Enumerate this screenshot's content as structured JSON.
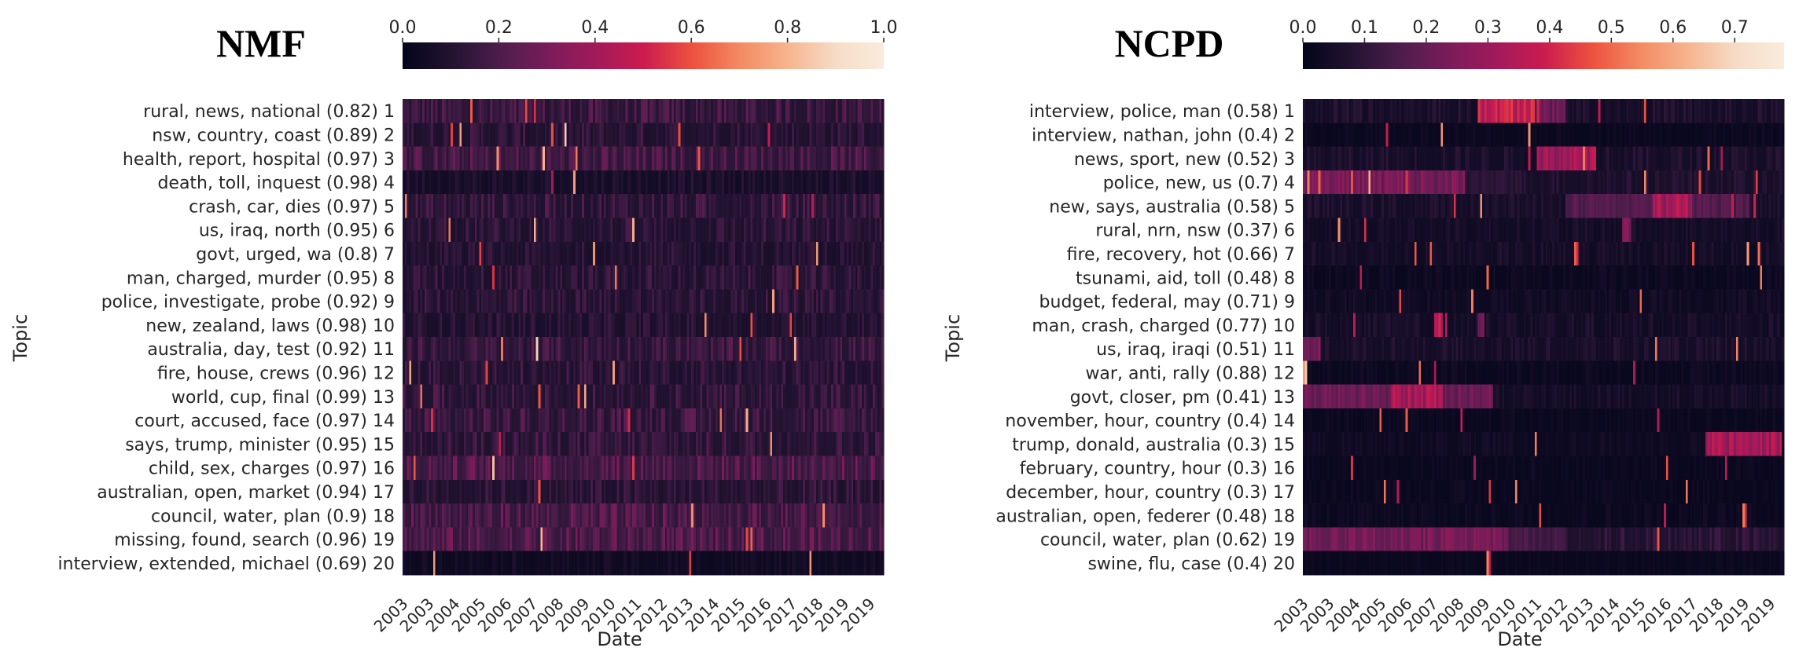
{
  "colormap": [
    "#03051a",
    "#221331",
    "#4c1d4b",
    "#781c59",
    "#a11a5b",
    "#cb1b4f",
    "#ed503e",
    "#f38a62",
    "#f6b48e",
    "#f6dcc7",
    "#faebdd"
  ],
  "chart_data": [
    {
      "type": "heatmap",
      "title": "NMF",
      "xlabel": "Date",
      "ylabel": "Topic",
      "colorbar_ticks": [
        "0.0",
        "0.2",
        "0.4",
        "0.6",
        "0.8",
        "1.0"
      ],
      "colorbar_range": [
        0,
        1.0
      ],
      "x_ticks": [
        "2003",
        "2003",
        "2004",
        "2005",
        "2006",
        "2007",
        "2008",
        "2009",
        "2010",
        "2011",
        "2012",
        "2013",
        "2014",
        "2015",
        "2016",
        "2017",
        "2018",
        "2019",
        "2019"
      ],
      "topics": [
        "rural, news, national  (0.82) 1",
        "nsw, country, coast  (0.89) 2",
        "health, report, hospital  (0.97) 3",
        "death, toll, inquest  (0.98) 4",
        "crash, car, dies  (0.97) 5",
        "us, iraq, north  (0.95) 6",
        "govt, urged, wa  (0.8) 7",
        "man, charged, murder  (0.95) 8",
        "police, investigate, probe  (0.92) 9",
        "new, zealand, laws  (0.98) 10",
        "australia, day, test  (0.92) 11",
        "fire, house, crews  (0.96) 12",
        "world, cup, final  (0.99) 13",
        "court, accused, face  (0.97) 14",
        "says, trump, minister  (0.95) 15",
        "child, sex, charges  (0.97) 16",
        "australian, open, market  (0.94) 17",
        "council, water, plan  (0.9) 18",
        "missing, found, search  (0.96) 19",
        "interview, extended, michael  (0.69) 20"
      ],
      "activity_profiles": [
        {
          "base": 0.1,
          "noise": 0.16,
          "segments": []
        },
        {
          "base": 0.08,
          "noise": 0.12,
          "segments": []
        },
        {
          "base": 0.12,
          "noise": 0.16,
          "segments": []
        },
        {
          "base": 0.05,
          "noise": 0.08,
          "segments": []
        },
        {
          "base": 0.09,
          "noise": 0.14,
          "segments": []
        },
        {
          "base": 0.08,
          "noise": 0.12,
          "segments": []
        },
        {
          "base": 0.07,
          "noise": 0.1,
          "segments": []
        },
        {
          "base": 0.08,
          "noise": 0.12,
          "segments": []
        },
        {
          "base": 0.08,
          "noise": 0.12,
          "segments": []
        },
        {
          "base": 0.07,
          "noise": 0.1,
          "segments": []
        },
        {
          "base": 0.1,
          "noise": 0.14,
          "segments": []
        },
        {
          "base": 0.08,
          "noise": 0.12,
          "segments": []
        },
        {
          "base": 0.09,
          "noise": 0.14,
          "segments": []
        },
        {
          "base": 0.1,
          "noise": 0.16,
          "segments": []
        },
        {
          "base": 0.09,
          "noise": 0.14,
          "segments": []
        },
        {
          "base": 0.14,
          "noise": 0.18,
          "segments": []
        },
        {
          "base": 0.08,
          "noise": 0.12,
          "segments": []
        },
        {
          "base": 0.13,
          "noise": 0.18,
          "segments": []
        },
        {
          "base": 0.14,
          "noise": 0.18,
          "segments": []
        },
        {
          "base": 0.03,
          "noise": 0.05,
          "segments": []
        }
      ]
    },
    {
      "type": "heatmap",
      "title": "NCPD",
      "xlabel": "Date",
      "ylabel": "Topic",
      "colorbar_ticks": [
        "0.0",
        "0.1",
        "0.2",
        "0.3",
        "0.4",
        "0.5",
        "0.6",
        "0.7"
      ],
      "colorbar_range": [
        0,
        0.78
      ],
      "x_ticks": [
        "2003",
        "2003",
        "2004",
        "2005",
        "2006",
        "2007",
        "2008",
        "2009",
        "2010",
        "2011",
        "2012",
        "2013",
        "2014",
        "2015",
        "2016",
        "2017",
        "2018",
        "2019",
        "2019"
      ],
      "topics": [
        "interview, police, man  (0.58) 1",
        "interview, nathan, john  (0.4) 2",
        "news, sport, new  (0.52) 3",
        "police, new, us  (0.7) 4",
        "new, says, australia  (0.58) 5",
        "rural, nrn, nsw  (0.37) 6",
        "fire, recovery, hot  (0.66) 7",
        "tsunami, aid, toll  (0.48) 8",
        "budget, federal, may  (0.71) 9",
        "man, crash, charged  (0.77) 10",
        "us, iraq, iraqi  (0.51) 11",
        "war, anti, rally  (0.88) 12",
        "govt, closer, pm  (0.41) 13",
        "november, hour, country  (0.4) 14",
        "trump, donald, australia  (0.3) 15",
        "february, country, hour  (0.3) 16",
        "december, hour, country  (0.3) 17",
        "australian, open, federer  (0.48) 18",
        "council, water, plan  (0.62) 19",
        "swine, flu, case  (0.4) 20"
      ],
      "activity_profiles": [
        {
          "base": 0.05,
          "noise": 0.08,
          "segments": [
            [
              2009.0,
              2010.9,
              0.5
            ],
            [
              2010.9,
              2012.0,
              0.28
            ]
          ]
        },
        {
          "base": 0.02,
          "noise": 0.03,
          "segments": [
            [
              2010.7,
              2010.8,
              0.95
            ]
          ]
        },
        {
          "base": 0.05,
          "noise": 0.08,
          "segments": [
            [
              2011.0,
              2013.0,
              0.42
            ]
          ]
        },
        {
          "base": 0.06,
          "noise": 0.08,
          "segments": [
            [
              2003.0,
              2008.5,
              0.3
            ],
            [
              2008.5,
              2010.5,
              0.12
            ]
          ]
        },
        {
          "base": 0.05,
          "noise": 0.07,
          "segments": [
            [
              2012.0,
              2015.0,
              0.22
            ],
            [
              2015.0,
              2016.3,
              0.42
            ],
            [
              2016.3,
              2018.3,
              0.22
            ]
          ]
        },
        {
          "base": 0.04,
          "noise": 0.06,
          "segments": [
            [
              2013.9,
              2014.2,
              0.32
            ]
          ]
        },
        {
          "base": 0.04,
          "noise": 0.06,
          "segments": [
            [
              2012.3,
              2012.4,
              0.65
            ]
          ]
        },
        {
          "base": 0.02,
          "noise": 0.04,
          "segments": [
            [
              2004.9,
              2005.0,
              0.5
            ]
          ]
        },
        {
          "base": 0.03,
          "noise": 0.05,
          "segments": [
            [
              2014.5,
              2014.6,
              0.55
            ]
          ]
        },
        {
          "base": 0.04,
          "noise": 0.07,
          "segments": [
            [
              2007.5,
              2007.8,
              0.45
            ],
            [
              2009.0,
              2009.2,
              0.25
            ]
          ]
        },
        {
          "base": 0.05,
          "noise": 0.07,
          "segments": [
            [
              2003.0,
              2003.6,
              0.3
            ]
          ]
        },
        {
          "base": 0.02,
          "noise": 0.04,
          "segments": [
            [
              2003.0,
              2003.1,
              0.8
            ]
          ]
        },
        {
          "base": 0.04,
          "noise": 0.06,
          "segments": [
            [
              2003.0,
              2006.0,
              0.28
            ],
            [
              2006.0,
              2007.8,
              0.42
            ],
            [
              2007.8,
              2009.5,
              0.28
            ]
          ]
        },
        {
          "base": 0.02,
          "noise": 0.03,
          "segments": [
            [
              2015.1,
              2015.2,
              0.55
            ]
          ]
        },
        {
          "base": 0.03,
          "noise": 0.04,
          "segments": [
            [
              2016.8,
              2019.4,
              0.42
            ]
          ]
        },
        {
          "base": 0.02,
          "noise": 0.03,
          "segments": [
            [
              2015.4,
              2015.5,
              0.6
            ]
          ]
        },
        {
          "base": 0.02,
          "noise": 0.03,
          "segments": [
            [
              2016.1,
              2016.2,
              0.62
            ]
          ]
        },
        {
          "base": 0.02,
          "noise": 0.04,
          "segments": [
            [
              2018.1,
              2018.2,
              0.55
            ]
          ]
        },
        {
          "base": 0.08,
          "noise": 0.1,
          "segments": [
            [
              2003.0,
              2010.0,
              0.3
            ],
            [
              2010.0,
              2012.0,
              0.18
            ]
          ]
        },
        {
          "base": 0.02,
          "noise": 0.02,
          "segments": [
            [
              2009.3,
              2009.4,
              0.58
            ]
          ]
        }
      ]
    }
  ]
}
